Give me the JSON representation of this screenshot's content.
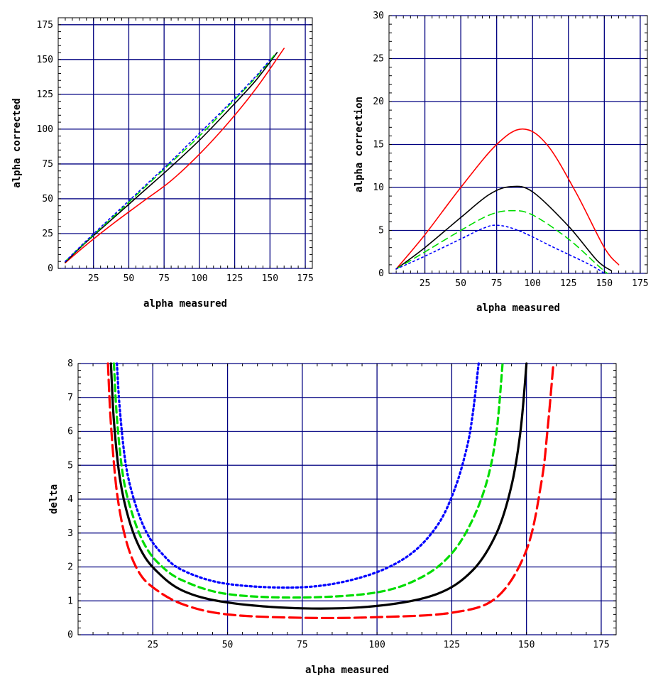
{
  "chart_data": [
    {
      "id": "corrected",
      "type": "line",
      "title": "",
      "xlabel": "alpha measured",
      "ylabel": "alpha corrected",
      "xlim": [
        0,
        180
      ],
      "ylim": [
        0,
        180
      ],
      "xticks": [
        25,
        50,
        75,
        100,
        125,
        150,
        175
      ],
      "yticks": [
        0,
        25,
        50,
        75,
        100,
        125,
        150,
        175
      ],
      "x_tick_labels": [
        "25",
        "50",
        "75",
        "100",
        "125",
        "150",
        "175"
      ],
      "y_tick_labels": [
        "0",
        "25",
        "50",
        "75",
        "100",
        "125",
        "150",
        "175"
      ],
      "grid": true,
      "series": [
        {
          "name": "red",
          "color": "#ff0000",
          "style": "solid",
          "x": [
            5,
            20,
            40,
            60,
            80,
            100,
            120,
            140,
            160
          ],
          "y": [
            4,
            17,
            33,
            48,
            63,
            82,
            104,
            129,
            158
          ]
        },
        {
          "name": "black",
          "color": "#000000",
          "style": "solid",
          "x": [
            5,
            20,
            40,
            60,
            80,
            100,
            120,
            140,
            155
          ],
          "y": [
            4.5,
            19,
            37,
            55,
            73,
            92,
            113,
            135,
            155
          ]
        },
        {
          "name": "green",
          "color": "#00dd00",
          "style": "dashed",
          "x": [
            5,
            20,
            40,
            60,
            80,
            100,
            120,
            140,
            153
          ],
          "y": [
            5,
            19.5,
            38,
            57,
            76,
            95,
            116,
            137,
            153
          ]
        },
        {
          "name": "blue",
          "color": "#0000ff",
          "style": "dotted",
          "x": [
            5,
            20,
            40,
            60,
            80,
            100,
            120,
            140,
            151
          ],
          "y": [
            5,
            20,
            39,
            58,
            77,
            97,
            117,
            138,
            151
          ]
        }
      ]
    },
    {
      "id": "correction",
      "type": "line",
      "title": "",
      "xlabel": "alpha measured",
      "ylabel": "alpha correction",
      "xlim": [
        0,
        180
      ],
      "ylim": [
        0,
        30
      ],
      "xticks": [
        25,
        50,
        75,
        100,
        125,
        150,
        175
      ],
      "yticks": [
        0,
        5,
        10,
        15,
        20,
        25,
        30
      ],
      "x_tick_labels": [
        "25",
        "50",
        "75",
        "100",
        "125",
        "150",
        "175"
      ],
      "y_tick_labels": [
        "0",
        "5",
        "10",
        "15",
        "20",
        "25",
        "30"
      ],
      "grid": true,
      "series": [
        {
          "name": "red",
          "color": "#ff0000",
          "style": "solid",
          "x": [
            5,
            25,
            50,
            75,
            93,
            110,
            130,
            150,
            160
          ],
          "y": [
            0.5,
            4.5,
            10,
            15,
            16.8,
            15,
            9.5,
            3,
            1
          ]
        },
        {
          "name": "black",
          "color": "#000000",
          "style": "solid",
          "x": [
            5,
            25,
            50,
            70,
            85,
            100,
            125,
            145,
            155
          ],
          "y": [
            0.5,
            3,
            6.5,
            9.2,
            10.1,
            9.5,
            5.5,
            1.5,
            0.3
          ]
        },
        {
          "name": "green",
          "color": "#00dd00",
          "style": "dashed",
          "x": [
            5,
            25,
            50,
            70,
            85,
            100,
            125,
            145,
            152
          ],
          "y": [
            0.5,
            2.5,
            5,
            6.8,
            7.3,
            6.8,
            4,
            1,
            0
          ]
        },
        {
          "name": "blue",
          "color": "#0000ff",
          "style": "dotted",
          "x": [
            5,
            25,
            50,
            65,
            75,
            90,
            115,
            140,
            150
          ],
          "y": [
            0.5,
            2,
            4,
            5.2,
            5.6,
            5,
            3,
            1,
            0
          ]
        }
      ]
    },
    {
      "id": "delta",
      "type": "line",
      "title": "",
      "xlabel": "alpha measured",
      "ylabel": "delta",
      "xlim": [
        0,
        180
      ],
      "ylim": [
        0,
        8
      ],
      "xticks": [
        25,
        50,
        75,
        100,
        125,
        150,
        175
      ],
      "yticks": [
        0,
        1,
        2,
        3,
        4,
        5,
        6,
        7,
        8
      ],
      "x_tick_labels": [
        "25",
        "50",
        "75",
        "100",
        "125",
        "150",
        "175"
      ],
      "y_tick_labels": [
        "0",
        "1",
        "2",
        "3",
        "4",
        "5",
        "6",
        "7",
        "8"
      ],
      "grid": true,
      "series": [
        {
          "name": "red",
          "color": "#ff0000",
          "style": "longdash",
          "x": [
            10,
            11,
            13,
            16,
            20,
            25,
            35,
            50,
            75,
            100,
            125,
            140,
            150,
            155,
            157,
            159
          ],
          "y": [
            8,
            6.2,
            4.2,
            2.8,
            1.9,
            1.4,
            0.9,
            0.6,
            0.5,
            0.52,
            0.65,
            1.1,
            2.5,
            4.5,
            6,
            8
          ]
        },
        {
          "name": "black",
          "color": "#000000",
          "style": "solid",
          "x": [
            11,
            12,
            14,
            17,
            21,
            26,
            35,
            50,
            75,
            100,
            120,
            132,
            140,
            145,
            148,
            150
          ],
          "y": [
            8,
            6.3,
            4.6,
            3.4,
            2.5,
            1.9,
            1.3,
            0.95,
            0.78,
            0.85,
            1.2,
            1.9,
            3,
            4.4,
            6,
            8
          ]
        },
        {
          "name": "green",
          "color": "#00dd00",
          "style": "dashed",
          "x": [
            12,
            13,
            15,
            18,
            22,
            27,
            35,
            50,
            75,
            100,
            115,
            125,
            132,
            137,
            140,
            142
          ],
          "y": [
            8,
            6.4,
            4.7,
            3.6,
            2.7,
            2.1,
            1.6,
            1.2,
            1.1,
            1.25,
            1.7,
            2.4,
            3.4,
            4.6,
            6,
            8
          ]
        },
        {
          "name": "blue",
          "color": "#0000ff",
          "style": "dotted",
          "x": [
            13,
            14,
            16,
            19,
            23,
            28,
            35,
            50,
            75,
            95,
            110,
            120,
            126,
            130,
            132,
            134
          ],
          "y": [
            8,
            6.6,
            5,
            3.9,
            3,
            2.4,
            1.9,
            1.5,
            1.4,
            1.7,
            2.3,
            3.2,
            4.3,
            5.5,
            6.5,
            8
          ]
        }
      ]
    }
  ]
}
